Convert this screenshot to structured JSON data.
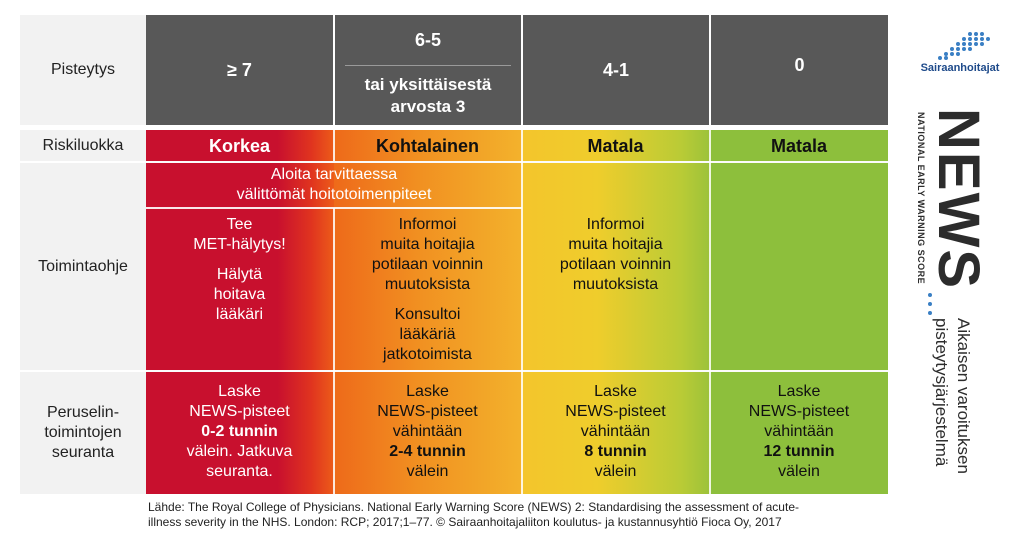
{
  "rows": {
    "scoring": "Pisteytys",
    "risk": "Riskiluokka",
    "instructions": "Toimintaohje",
    "monitoring": [
      "Peruselin-",
      "toimintojen",
      "seuranta"
    ]
  },
  "headers": {
    "col1": "≥ 7",
    "col2_top": "6-5",
    "col2_bottom": [
      "tai yksittäisestä",
      "arvosta 3"
    ],
    "col3": "4-1",
    "col4": "0"
  },
  "risk": {
    "col1": "Korkea",
    "col2": "Kohtalainen",
    "col3": "Matala",
    "col4": "Matala"
  },
  "instructions": {
    "span": [
      "Aloita tarvittaessa",
      "välittömät hoitotoimenpiteet"
    ],
    "col1": [
      "Tee",
      "MET-hälytys!",
      "Hälytä",
      "hoitava",
      "lääkäri"
    ],
    "col2": [
      "Informoi",
      "muita hoitajia",
      "potilaan voinnin",
      "muutoksista",
      "Konsultoi",
      "lääkäriä",
      "jatkotoimista"
    ],
    "col3": [
      "Informoi",
      "muita hoitajia",
      "potilaan voinnin",
      "muutoksista"
    ]
  },
  "monitoring": {
    "col1": [
      "Laske",
      "NEWS-pisteet",
      "0-2 tunnin",
      "välein. Jatkuva",
      "seuranta."
    ],
    "col2": [
      "Laske",
      "NEWS-pisteet",
      "vähintään",
      "2-4 tunnin",
      "välein"
    ],
    "col3": [
      "Laske",
      "NEWS-pisteet",
      "vähintään",
      "8 tunnin",
      "välein"
    ],
    "col4": [
      "Laske",
      "NEWS-pisteet",
      "vähintään",
      "12 tunnin",
      "välein"
    ]
  },
  "source": [
    "Lähde: The Royal College of Physicians. National Early Warning Score (NEWS) 2: Standardising the assessment of acute-",
    "illness severity in the NHS. London: RCP; 2017;1–77. © Sairaanhoitajaliiton koulutus- ja kustannusyhtiö Fioca Oy, 2017"
  ],
  "brand": {
    "logo_text": "Sairaanhoitajat",
    "news": "NEWS",
    "news_full": "NATIONAL EARLY WARNING SCORE",
    "tagline": [
      "Aikaisen varoituksen",
      "pisteytysjärjestelmä"
    ]
  },
  "colors": {
    "high": "#c8102e",
    "moderate": "#f19021",
    "low": "#f4c52c",
    "none": "#8dbf3c",
    "header": "#585858",
    "brand_blue": "#1e4a8a"
  }
}
